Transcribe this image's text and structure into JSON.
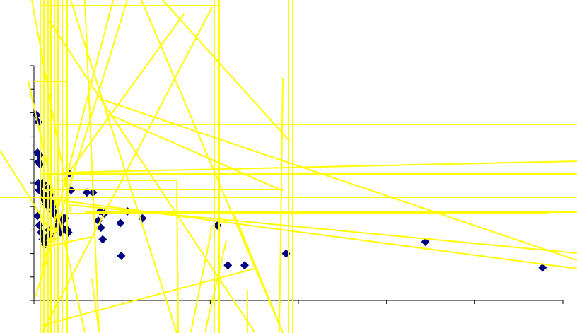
{
  "chart_data": {
    "type": "scatter",
    "title": "",
    "xlabel": "",
    "ylabel": "",
    "grid": false,
    "legend": "none",
    "xlim": [
      0,
      6
    ],
    "ylim": [
      0,
      10
    ],
    "x_ticks": [
      0,
      1,
      2,
      3,
      4,
      5,
      6
    ],
    "y_ticks": [
      0,
      1,
      2,
      3,
      4,
      5,
      6,
      7,
      8,
      9,
      10
    ],
    "colors": {
      "marker": "#000080",
      "overlay_lines": "#ffff00",
      "axis": "#000000",
      "background": "#ffffff"
    },
    "series": [
      {
        "x": [
          0.03,
          0.05,
          0.04,
          0.06,
          0.05,
          0.07,
          0.05,
          0.08,
          0.06,
          0.09,
          0.1,
          0.12,
          0.11,
          0.14,
          0.16,
          0.18,
          0.2,
          0.22,
          0.25,
          0.28,
          0.3,
          0.32,
          0.35,
          0.38,
          0.4,
          0.42,
          0.04,
          0.06,
          0.08,
          0.1,
          0.13,
          0.15,
          0.17,
          0.19,
          0.21,
          0.24,
          0.27,
          0.3,
          0.33,
          0.36,
          0.39,
          0.6,
          0.67,
          0.75,
          0.8,
          0.73,
          0.76,
          0.78,
          0.98,
          0.99,
          1.06,
          1.23,
          2.08,
          2.2,
          2.39,
          2.86,
          4.44,
          5.77
        ],
        "y": [
          7.9,
          7.6,
          6.3,
          6.2,
          5.9,
          5.8,
          5.0,
          4.9,
          4.7,
          4.6,
          5.0,
          4.5,
          4.3,
          4.1,
          4.8,
          4.5,
          4.2,
          3.8,
          3.6,
          3.4,
          3.3,
          3.1,
          3.5,
          3.0,
          5.4,
          4.7,
          3.6,
          3.2,
          2.9,
          2.6,
          2.4,
          2.7,
          3.0,
          2.8,
          4.0,
          3.7,
          3.2,
          2.9,
          3.5,
          3.0,
          2.9,
          4.6,
          4.6,
          3.8,
          3.7,
          3.4,
          3.1,
          2.6,
          3.3,
          1.9,
          3.8,
          3.5,
          3.2,
          1.5,
          1.5,
          2.0,
          2.5,
          1.4
        ]
      }
    ]
  }
}
